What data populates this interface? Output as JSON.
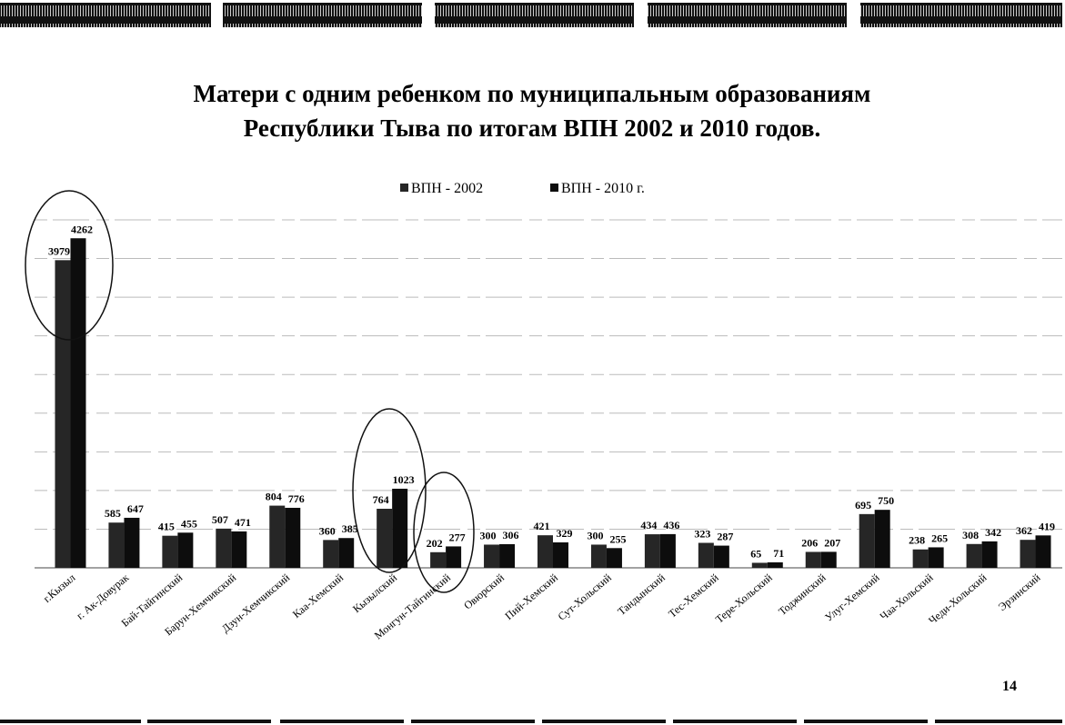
{
  "chart_data": {
    "type": "bar",
    "title": [
      "Матери с одним ребенком по муниципальным образованиям",
      "Республики Тыва по итогам ВПН 2002 и 2010 годов."
    ],
    "categories": [
      "г.Кызыл",
      "г. Ак-Довурак",
      "Бай-Тайгинский",
      "Барун-Хемчикский",
      "Дзун-Хемчикский",
      "Каа-Хемский",
      "Кызылский",
      "Монгун-Тайгинский",
      "Овюрский",
      "Пий-Хемский",
      "Сут-Хольский",
      "Тандынский",
      "Тес-Хемский",
      "Тере-Хольский",
      "Тоджинский",
      "Улуг-Хемский",
      "Чаа-Хольский",
      "Чеди-Хольский",
      "Эрзинский"
    ],
    "series": [
      {
        "name": "ВПН - 2002",
        "color": "#262626",
        "values": [
          3979,
          585,
          415,
          507,
          804,
          360,
          764,
          202,
          300,
          421,
          300,
          434,
          323,
          65,
          206,
          695,
          238,
          308,
          362
        ]
      },
      {
        "name": "ВПН - 2010 г.",
        "color": "#0d0d0d",
        "values": [
          4262,
          647,
          455,
          471,
          776,
          385,
          1023,
          277,
          306,
          329,
          255,
          436,
          287,
          71,
          207,
          750,
          265,
          342,
          419
        ]
      }
    ],
    "ylim": [
      0,
      4500
    ],
    "yticks": [
      500,
      1000,
      1500,
      2000,
      2500,
      3000,
      3500,
      4000,
      4500
    ],
    "grid": true,
    "legend": "top",
    "page_number": "14"
  }
}
